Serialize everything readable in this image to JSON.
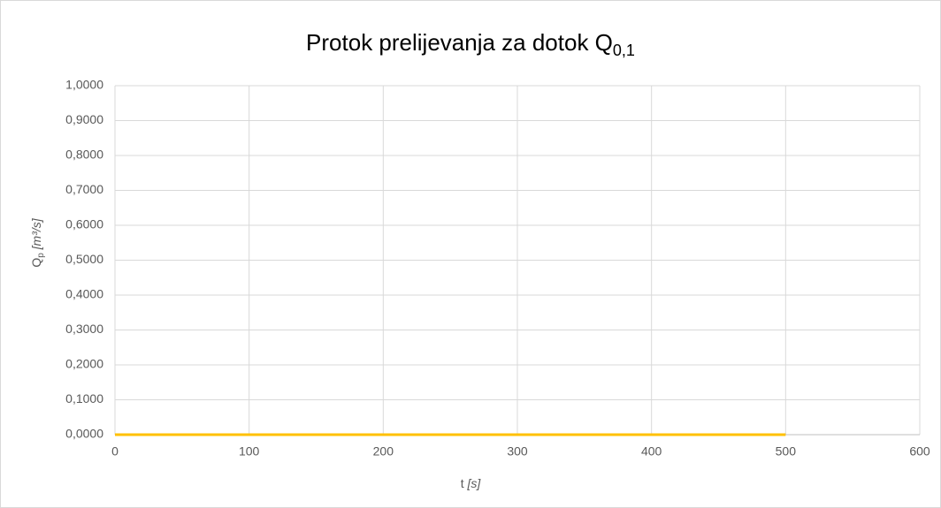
{
  "chart_data": {
    "type": "line",
    "title": {
      "text": "Protok prelijevanja za dotok Q",
      "subscript": "0,1"
    },
    "x_label": {
      "text": "t ",
      "unit": "[s]"
    },
    "y_label": {
      "text": "Q",
      "subscript": "p",
      "unit": " [m³/s]"
    },
    "x": [
      0,
      500
    ],
    "series": [
      {
        "color": "#ffc000",
        "values": [
          0,
          0
        ]
      }
    ],
    "xlim": [
      0,
      600
    ],
    "xticks": [
      0,
      100,
      200,
      300,
      400,
      500,
      600
    ],
    "ylim": [
      0,
      1
    ],
    "yticks": [
      {
        "value": 0,
        "label": "0,0000"
      },
      {
        "value": 0.1,
        "label": "0,1000"
      },
      {
        "value": 0.2,
        "label": "0,2000"
      },
      {
        "value": 0.3,
        "label": "0,3000"
      },
      {
        "value": 0.4,
        "label": "0,4000"
      },
      {
        "value": 0.5,
        "label": "0,5000"
      },
      {
        "value": 0.6,
        "label": "0,6000"
      },
      {
        "value": 0.7,
        "label": "0,7000"
      },
      {
        "value": 0.8,
        "label": "0,8000"
      },
      {
        "value": 0.9,
        "label": "0,9000"
      },
      {
        "value": 1,
        "label": "1,0000"
      }
    ],
    "grid": true
  }
}
